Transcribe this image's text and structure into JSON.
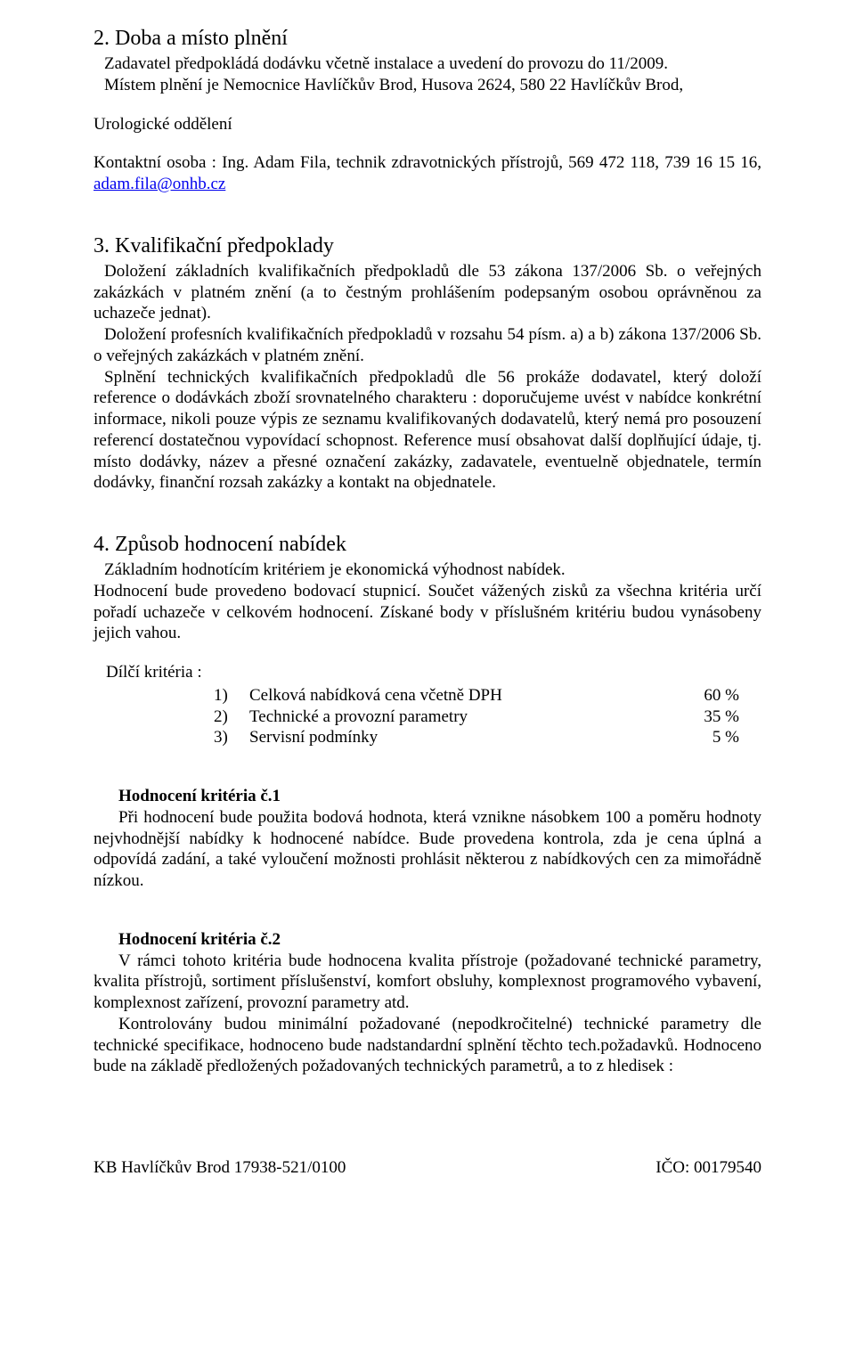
{
  "section2": {
    "heading": "2. Doba a místo plnění",
    "p1": "Zadavatel předpokládá dodávku včetně instalace a uvedení do provozu do 11/2009.",
    "p2": "Místem plnění je Nemocnice Havlíčkův Brod, Husova 2624, 580 22 Havlíčkův Brod,",
    "p3": "Urologické oddělení",
    "p4_pre": "Kontaktní osoba : Ing. Adam Fila, technik zdravotnických přístrojů, 569 472 118, 739 16 15 16, ",
    "p4_link": "adam.fila@onhb.cz"
  },
  "section3": {
    "heading": "3. Kvalifikační předpoklady",
    "p1": "Doložení základních kvalifikačních předpokladů dle 53 zákona 137/2006 Sb. o veřejných zakázkách v platném znění (a to čestným prohlášením podepsaným osobou oprávněnou za uchazeče jednat).",
    "p2": "Doložení profesních kvalifikačních předpokladů v rozsahu 54 písm. a) a b) zákona 137/2006 Sb. o veřejných zakázkách v platném znění.",
    "p3": "Splnění technických kvalifikačních předpokladů dle 56 prokáže dodavatel, který doloží reference o dodávkách zboží srovnatelného charakteru : doporučujeme uvést v nabídce konkrétní informace, nikoli pouze výpis ze seznamu kvalifikovaných dodavatelů, který nemá pro posouzení referencí dostatečnou vypovídací schopnost. Reference musí obsahovat další doplňující údaje, tj. místo dodávky, název a přesné označení zakázky, zadavatele, eventuelně objednatele, termín dodávky, finanční rozsah zakázky a kontakt na objednatele."
  },
  "section4": {
    "heading": "4. Způsob hodnocení nabídek",
    "p1": "Základním hodnotícím kritériem je ekonomická výhodnost nabídek.",
    "p2": "Hodnocení bude provedeno bodovací stupnicí. Součet vážených zisků za všechna kritéria určí pořadí uchazeče v celkovém hodnocení. Získané body v příslušném kritériu budou vynásobeny jejich vahou.",
    "criteria_label": "Dílčí kritéria :",
    "criteria": [
      {
        "num": "1)",
        "label": "Celková nabídková cena včetně DPH",
        "pct": "60 %"
      },
      {
        "num": "2)",
        "label": "Technické a provozní parametry",
        "pct": "35 %"
      },
      {
        "num": "3)",
        "label": "Servisní podmínky",
        "pct": "5 %"
      }
    ],
    "k1_heading": "Hodnocení kritéria č.1",
    "k1_body": "Při hodnocení bude použita bodová hodnota, která vznikne násobkem 100 a poměru hodnoty nejvhodnější nabídky k hodnocené nabídce. Bude provedena kontrola, zda je cena úplná a odpovídá zadání, a také vyloučení možnosti prohlásit některou z nabídkových cen za mimořádně nízkou.",
    "k2_heading": "Hodnocení kritéria č.2",
    "k2_p1": "V rámci tohoto kritéria bude hodnocena kvalita přístroje (požadované technické parametry, kvalita přístrojů, sortiment příslušenství, komfort obsluhy, komplexnost programového vybavení, komplexnost zařízení, provozní parametry atd.",
    "k2_p2": "Kontrolovány budou minimální požadované (nepodkročitelné) technické parametry dle technické specifikace, hodnoceno bude nadstandardní splnění těchto tech.požadavků. Hodnoceno bude na základě předložených požadovaných technických parametrů, a to z hledisek :"
  },
  "footer": {
    "left": "KB Havlíčkův Brod  17938-521/0100",
    "right": "IČO: 00179540"
  }
}
